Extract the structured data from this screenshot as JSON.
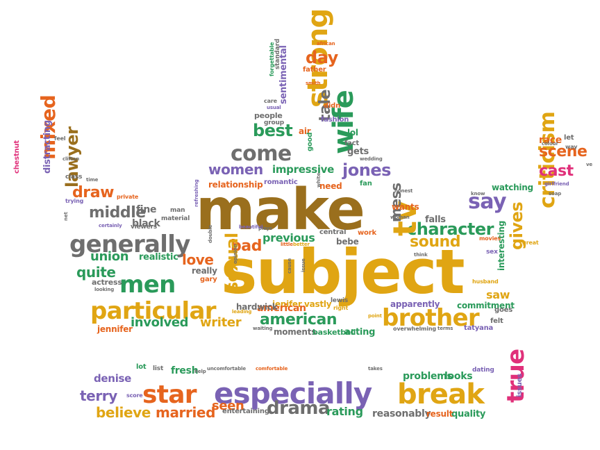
{
  "palette": {
    "gold": "#e0a513",
    "brown": "#9a6f1d",
    "orange": "#e6641e",
    "green": "#2a9a5a",
    "purple": "#7a62b4",
    "gray": "#6e6e6e",
    "pink": "#e0307a",
    "darkgray": "#555555"
  },
  "words": [
    "subject",
    "make",
    "especially",
    "break",
    "particular",
    "generally",
    "men",
    "brother",
    "star",
    "character",
    "strong",
    "wife",
    "come",
    "criticism",
    "american",
    "say",
    "middle",
    "draw",
    "involved",
    "writer",
    "true",
    "tv",
    "scene",
    "cast",
    "mixed",
    "lawyer",
    "quite",
    "union",
    "day",
    "best",
    "women",
    "jones",
    "sound",
    "love",
    "bad",
    "previous",
    "tale",
    "gives",
    "drama",
    "believe",
    "married",
    "terry",
    "denise",
    "seen",
    "rating",
    "sexual",
    "fine",
    "black",
    "realistic",
    "saw",
    "mess",
    "impressive",
    "problems",
    "looks",
    "quality",
    "reasonably",
    "result",
    "jennifer",
    "jenifer",
    "american",
    "moments",
    "basketball",
    "acting",
    "vastly",
    "hardwick",
    "apparently",
    "commitment",
    "falls",
    "wants",
    "interesting",
    "watching",
    "race",
    "let",
    "relationship",
    "romantic",
    "need",
    "fan",
    "gets",
    "lol",
    "fact",
    "air",
    "group",
    "fashion",
    "people",
    "sentimental",
    "father",
    "didn",
    "forgettable",
    "standard",
    "african",
    "smith",
    "care",
    "usual",
    "good",
    "chestnut",
    "distracting",
    "feel",
    "clifton",
    "class",
    "time",
    "trying",
    "private",
    "net",
    "certainly",
    "man",
    "material",
    "refreshing",
    "viewers",
    "central",
    "work",
    "bebe",
    "little",
    "better",
    "plays",
    "opinion",
    "beautiful",
    "double",
    "cause",
    "think",
    "movies",
    "sex",
    "great",
    "husband",
    "goes",
    "felt",
    "terms",
    "tatyana",
    "overwhelming",
    "point",
    "right",
    "lewis",
    "leading",
    "waiting",
    "gary",
    "really",
    "actress",
    "looking",
    "fresh",
    "help",
    "uncomfortable",
    "comfortable",
    "takes",
    "dating",
    "lot",
    "list",
    "entertaining",
    "score",
    "issues",
    "white",
    "issue",
    "colour",
    "way",
    "girlfriend",
    "soap",
    "ve",
    "honest",
    "wedding",
    "woman",
    "know"
  ]
}
